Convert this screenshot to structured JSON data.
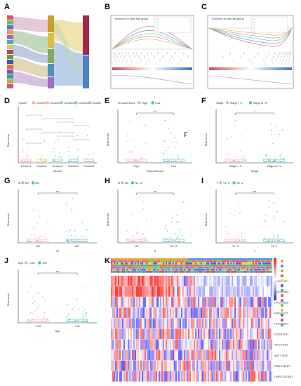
{
  "figure": {
    "panel_labels": [
      "A",
      "B",
      "C",
      "D",
      "E",
      "F",
      "G",
      "H",
      "I",
      "J",
      "K"
    ],
    "stray_label_E": "F"
  },
  "panel_b": {
    "title": "Enriched in high risk group"
  },
  "panel_c": {
    "title": "Enriched in low risk group"
  },
  "panel_d": {
    "legend_title": "Cluster",
    "legend_items": [
      "Cluster1",
      "Cluster2",
      "Cluster3",
      "Cluster4",
      "Cluster5"
    ],
    "xlabel": "Cluster",
    "ylabel": "Risk score",
    "colors": [
      "#f4a6a0",
      "#e8c66a",
      "#8dd3a8",
      "#74c4dc",
      "#d7a2e6"
    ]
  },
  "panel_e": {
    "legend_title": "ImmuneScore",
    "legend_items": [
      "High",
      "Low"
    ],
    "categories": [
      "High",
      "Low"
    ],
    "xlabel": "ImmuneScore",
    "ylabel": "Risk score",
    "sig": "***",
    "colors": [
      "#f4a6a0",
      "#4fb8c9"
    ]
  },
  "panel_f": {
    "legend_title": "Stage",
    "legend_items": [
      "Stage I~II",
      "Stage III~IV"
    ],
    "categories": [
      "Stage I~II",
      "Stage III~IV"
    ],
    "xlabel": "Stage",
    "ylabel": "Risk score",
    "sig": "*",
    "colors": [
      "#f4a6a0",
      "#4fb8c9"
    ]
  },
  "panel_g": {
    "legend_title": "M",
    "legend_items": [
      "M0",
      "M1"
    ],
    "categories": [
      "M0",
      "M1"
    ],
    "xlabel": "M",
    "ylabel": "Risk score",
    "sig": "ns",
    "colors": [
      "#f4a6a0",
      "#4fb8c9"
    ]
  },
  "panel_h": {
    "legend_title": "N",
    "legend_items": [
      "N0",
      "N1~3"
    ],
    "categories": [
      "N0",
      "N1~3"
    ],
    "xlabel": "N",
    "ylabel": "Risk score",
    "sig": "ns",
    "colors": [
      "#f4a6a0",
      "#4fb8c9"
    ]
  },
  "panel_i": {
    "legend_title": "T",
    "legend_items": [
      "T1~2",
      "T3~4"
    ],
    "categories": [
      "T1~2",
      "T3~4"
    ],
    "xlabel": "T",
    "ylabel": "Risk score",
    "sig": "ns",
    "colors": [
      "#f4a6a0",
      "#4fb8c9"
    ]
  },
  "panel_j": {
    "legend_title": "Age",
    "legend_items": [
      "<=65",
      ">65"
    ],
    "categories": [
      "<=65",
      ">65"
    ],
    "xlabel": "Age",
    "ylabel": "Risk score",
    "sig": "ns",
    "colors": [
      "#f4a6a0",
      "#4fb8c9"
    ]
  },
  "panel_k": {
    "genes": [
      "LINC01871",
      "LINC02384",
      "LINC01615",
      "MAGI2-IT1",
      "LINC01614",
      "CDKN-AS1",
      "GPC3-AS1",
      "MIR7-3HG",
      "WDLP5B-DT",
      "LINP2132-AS1"
    ]
  }
}
